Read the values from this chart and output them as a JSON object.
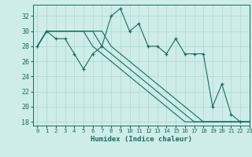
{
  "title": "",
  "xlabel": "Humidex (Indice chaleur)",
  "xlim": [
    -0.5,
    23
  ],
  "ylim": [
    17.5,
    33.5
  ],
  "yticks": [
    18,
    20,
    22,
    24,
    26,
    28,
    30,
    32
  ],
  "xticks": [
    0,
    1,
    2,
    3,
    4,
    5,
    6,
    7,
    8,
    9,
    10,
    11,
    12,
    13,
    14,
    15,
    16,
    17,
    18,
    19,
    20,
    21,
    22,
    23
  ],
  "bg_color": "#ceecea",
  "grid_color": "#a8d8d4",
  "line_color": "#1a6b5e",
  "spiky": [
    28,
    30,
    29,
    29,
    27,
    25,
    27,
    28,
    32,
    33,
    30,
    31,
    28,
    28,
    27,
    29,
    27,
    27,
    27,
    20,
    23,
    19,
    18,
    18
  ],
  "line1": [
    28,
    30,
    30,
    30,
    30,
    30,
    30,
    30,
    28,
    27,
    26,
    25,
    24,
    23,
    22,
    21,
    20,
    19,
    18,
    18,
    18,
    18,
    18,
    18
  ],
  "line2": [
    28,
    30,
    30,
    30,
    30,
    30,
    30,
    28,
    27,
    26,
    25,
    24,
    23,
    22,
    21,
    20,
    19,
    18,
    18,
    18,
    18,
    18,
    18,
    18
  ],
  "line3": [
    28,
    30,
    30,
    30,
    30,
    30,
    28,
    27,
    26,
    25,
    24,
    23,
    22,
    21,
    20,
    19,
    18,
    18,
    18,
    18,
    18,
    18,
    18,
    18
  ]
}
